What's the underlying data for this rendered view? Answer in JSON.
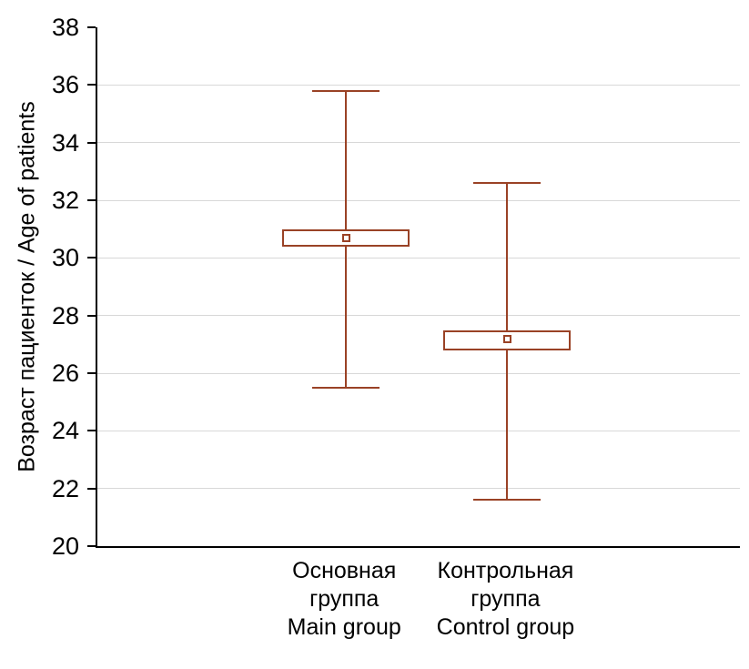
{
  "chart_data": {
    "type": "box",
    "title": "",
    "ylabel": "Возраст пациенток / Age of patients",
    "xlabel": "",
    "ylim": [
      20,
      38
    ],
    "ytick_step": 2,
    "ytick_labels": [
      "20",
      "22",
      "24",
      "26",
      "28",
      "30",
      "32",
      "34",
      "36",
      "38"
    ],
    "grid": true,
    "legend": "none",
    "categories": [
      {
        "lines": [
          "Основная",
          "группа",
          "Main group"
        ]
      },
      {
        "lines": [
          "Контрольная",
          "группа",
          "Control group"
        ]
      }
    ],
    "series": [
      {
        "name": "Основная группа / Main group",
        "mean": 30.7,
        "box_low": 30.4,
        "box_high": 31.0,
        "whisker_low": 25.5,
        "whisker_high": 35.8
      },
      {
        "name": "Контрольная группа / Control group",
        "mean": 27.2,
        "box_low": 26.8,
        "box_high": 27.5,
        "whisker_low": 21.6,
        "whisker_high": 32.6
      }
    ],
    "colors": {
      "box_stroke": "#9a4226",
      "grid": "#d8d8d8",
      "axis": "#000000",
      "background": "#ffffff"
    }
  }
}
